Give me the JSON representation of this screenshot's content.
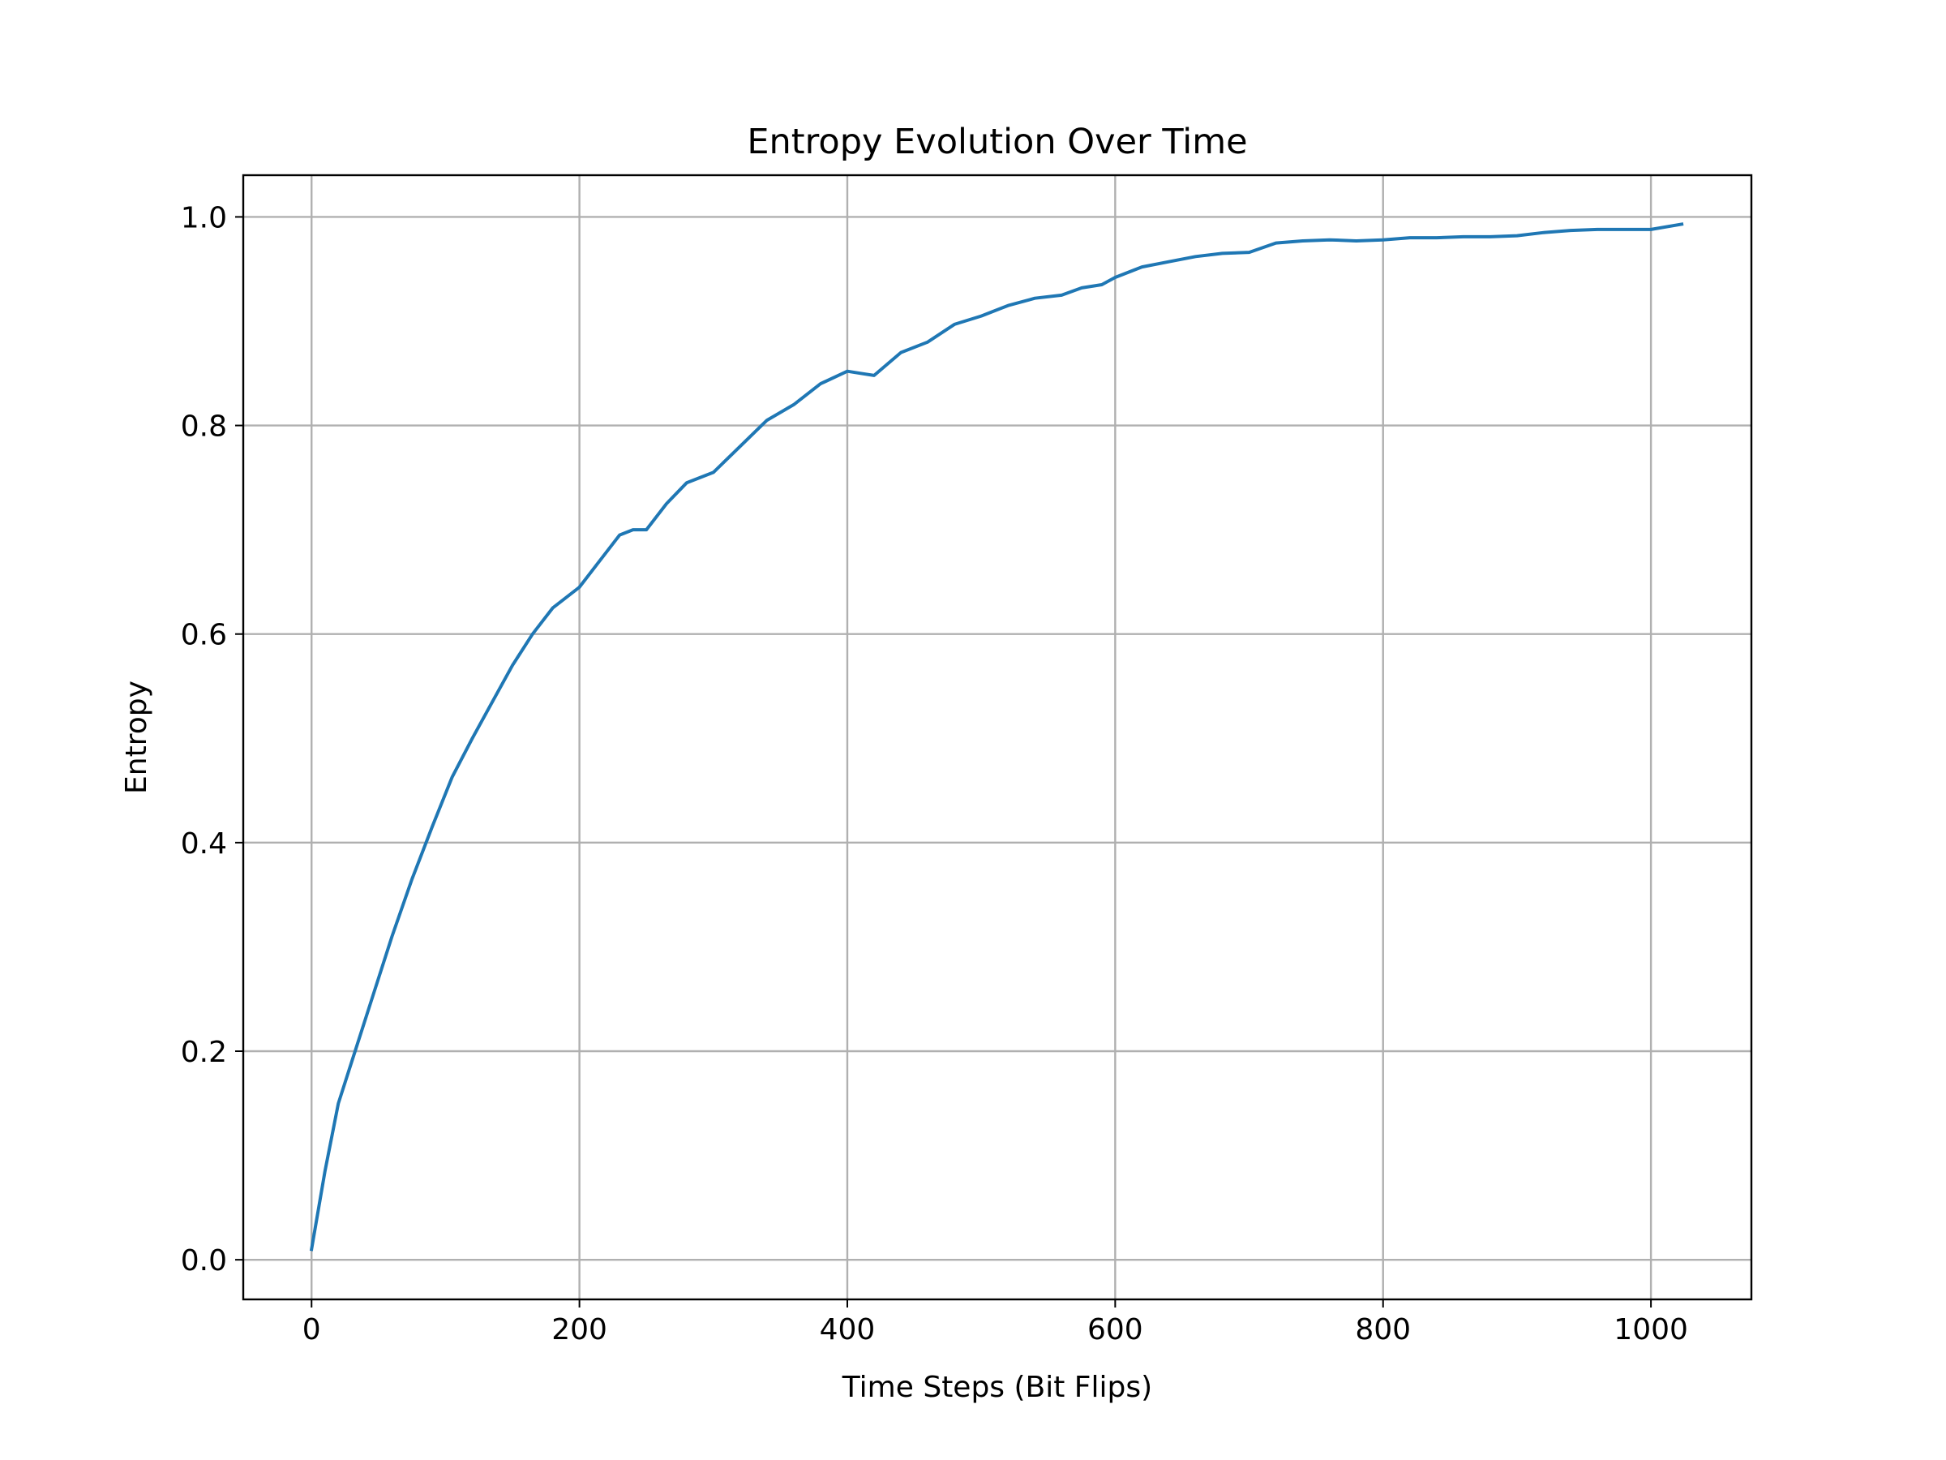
{
  "chart_data": {
    "type": "line",
    "title": "Entropy Evolution Over Time",
    "xlabel": "Time Steps (Bit Flips)",
    "ylabel": "Entropy",
    "xlim": [
      -51,
      1075
    ],
    "ylim": [
      -0.038,
      1.04
    ],
    "xticks": [
      0,
      200,
      400,
      600,
      800,
      1000
    ],
    "xtick_labels": [
      "0",
      "200",
      "400",
      "600",
      "800",
      "1000"
    ],
    "yticks": [
      0.0,
      0.2,
      0.4,
      0.6,
      0.8,
      1.0
    ],
    "ytick_labels": [
      "0.0",
      "0.2",
      "0.4",
      "0.6",
      "0.8",
      "1.0"
    ],
    "grid": true,
    "series": [
      {
        "color": "#1f77b4",
        "x": [
          0,
          10,
          20,
          30,
          45,
          60,
          75,
          90,
          105,
          120,
          135,
          150,
          165,
          180,
          200,
          215,
          230,
          240,
          250,
          265,
          280,
          300,
          320,
          340,
          360,
          380,
          400,
          410,
          420,
          440,
          460,
          480,
          500,
          520,
          540,
          560,
          575,
          590,
          600,
          620,
          640,
          660,
          680,
          700,
          720,
          740,
          760,
          780,
          800,
          820,
          840,
          860,
          880,
          900,
          920,
          940,
          960,
          980,
          1000,
          1023
        ],
        "y": [
          0.01,
          0.085,
          0.15,
          0.19,
          0.25,
          0.31,
          0.365,
          0.415,
          0.463,
          0.5,
          0.535,
          0.57,
          0.6,
          0.625,
          0.645,
          0.67,
          0.695,
          0.7,
          0.7,
          0.725,
          0.745,
          0.755,
          0.78,
          0.805,
          0.82,
          0.84,
          0.852,
          0.85,
          0.848,
          0.87,
          0.88,
          0.897,
          0.905,
          0.915,
          0.922,
          0.925,
          0.932,
          0.935,
          0.942,
          0.952,
          0.957,
          0.962,
          0.965,
          0.966,
          0.975,
          0.977,
          0.978,
          0.977,
          0.978,
          0.98,
          0.98,
          0.981,
          0.981,
          0.982,
          0.985,
          0.987,
          0.988,
          0.988,
          0.988,
          0.993
        ]
      }
    ]
  }
}
